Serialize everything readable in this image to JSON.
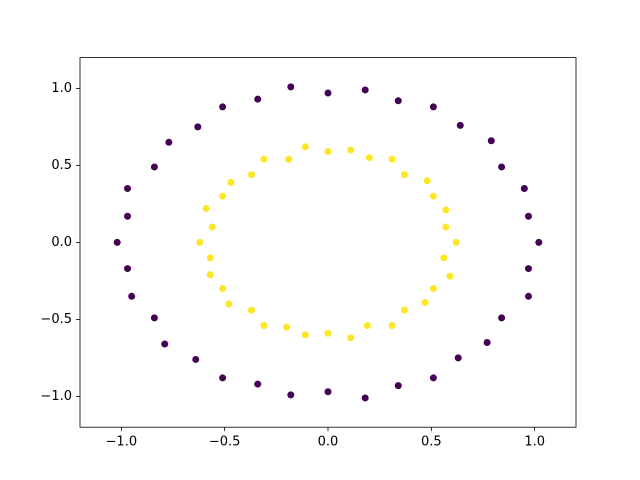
{
  "chart_data": {
    "type": "scatter",
    "xlim": [
      -1.2,
      1.2
    ],
    "ylim": [
      -1.2,
      1.2
    ],
    "xticks": [
      {
        "value": -1.0,
        "label": "−1.0"
      },
      {
        "value": -0.5,
        "label": "−0.5"
      },
      {
        "value": 0.0,
        "label": "0.0"
      },
      {
        "value": 0.5,
        "label": "0.5"
      },
      {
        "value": 1.0,
        "label": "1.0"
      }
    ],
    "yticks": [
      {
        "value": -1.0,
        "label": "−1.0"
      },
      {
        "value": -0.5,
        "label": "−0.5"
      },
      {
        "value": 0.0,
        "label": "0.0"
      },
      {
        "value": 0.5,
        "label": "0.5"
      },
      {
        "value": 1.0,
        "label": "1.0"
      }
    ],
    "grid": false,
    "series": [
      {
        "color": "#440154",
        "x": [
          1.02,
          0.97,
          0.95,
          0.84,
          0.79,
          0.64,
          0.51,
          0.34,
          0.18,
          0.0,
          -0.18,
          -0.34,
          -0.51,
          -0.63,
          -0.77,
          -0.84,
          -0.97,
          -0.97,
          -1.02,
          -0.97,
          -0.95,
          -0.84,
          -0.79,
          -0.64,
          -0.51,
          -0.34,
          -0.18,
          0.0,
          0.18,
          0.34,
          0.51,
          0.63,
          0.77,
          0.84,
          0.97,
          0.97
        ],
        "y": [
          0.0,
          0.17,
          0.35,
          0.49,
          0.66,
          0.76,
          0.88,
          0.92,
          0.99,
          0.97,
          1.01,
          0.93,
          0.88,
          0.75,
          0.65,
          0.49,
          0.35,
          0.17,
          0.0,
          -0.17,
          -0.35,
          -0.49,
          -0.66,
          -0.76,
          -0.88,
          -0.92,
          -0.99,
          -0.97,
          -1.01,
          -0.93,
          -0.88,
          -0.75,
          -0.65,
          -0.49,
          -0.35,
          -0.17
        ]
      },
      {
        "color": "#fde725",
        "x": [
          0.62,
          0.57,
          0.57,
          0.51,
          0.48,
          0.37,
          0.31,
          0.2,
          0.11,
          0.0,
          -0.11,
          -0.19,
          -0.31,
          -0.37,
          -0.47,
          -0.51,
          -0.59,
          -0.56,
          -0.62,
          -0.57,
          -0.57,
          -0.51,
          -0.48,
          -0.37,
          -0.31,
          -0.2,
          -0.11,
          0.0,
          0.11,
          0.19,
          0.31,
          0.37,
          0.47,
          0.51,
          0.59,
          0.56
        ],
        "y": [
          0.0,
          0.1,
          0.21,
          0.3,
          0.4,
          0.44,
          0.54,
          0.55,
          0.6,
          0.59,
          0.62,
          0.54,
          0.54,
          0.44,
          0.39,
          0.3,
          0.22,
          0.1,
          0.0,
          -0.1,
          -0.21,
          -0.3,
          -0.4,
          -0.44,
          -0.54,
          -0.55,
          -0.6,
          -0.59,
          -0.62,
          -0.54,
          -0.54,
          -0.44,
          -0.39,
          -0.3,
          -0.22,
          -0.1
        ]
      }
    ]
  }
}
